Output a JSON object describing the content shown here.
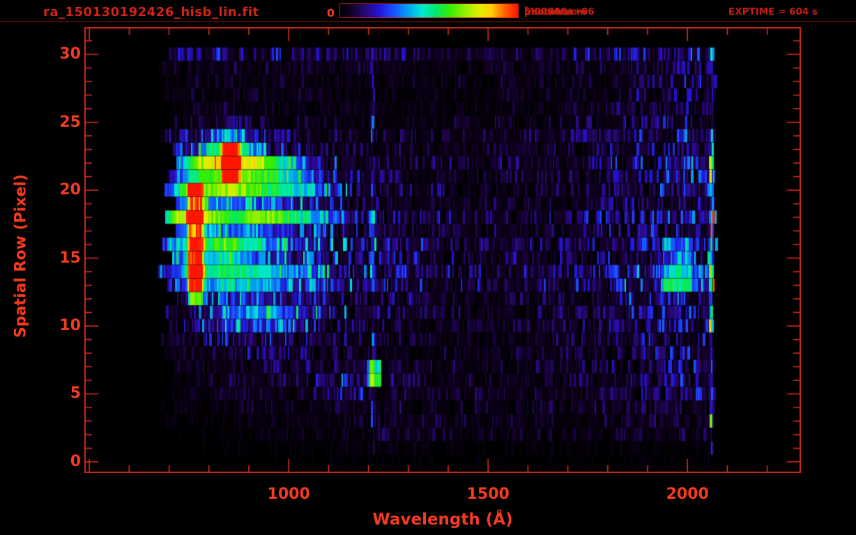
{
  "header": {
    "title": "ra_150130192426_hisb_lin.fit",
    "colorbar_min_label": "0",
    "colorbar_max_label": "5.00000e+06",
    "colorbar_units_prefix": " photons/cm",
    "colorbar_units_sup": "2",
    "colorbar_units_suffix": "/sec/A/sr",
    "exptime_label": "EXPTIME = 604 s"
  },
  "colors": {
    "background": "#000000",
    "title_text": "#d0241a",
    "header_text": "#c41f12",
    "tick_text": "#f53b20",
    "frame": "#c8271a",
    "tick": "#e8301d"
  },
  "chart_data": {
    "type": "heatmap",
    "title": "ra_150130192426_hisb_lin.fit",
    "xlabel": "Wavelength (Å)",
    "ylabel": "Spatial Row (Pixel)",
    "x_ticks": [
      1000,
      1500,
      2000
    ],
    "x_minor_step": 100,
    "x_major_step": 500,
    "x_range": [
      491,
      2281
    ],
    "y_ticks": [
      0,
      5,
      10,
      15,
      20,
      25,
      30
    ],
    "y_minor_step": 1,
    "y_major_step": 5,
    "y_range": [
      -0.72,
      31.9
    ],
    "exposure_s": 604,
    "colorbar": {
      "min": 0,
      "max": 5000000,
      "units": "photons/cm^2/sec/A/sr",
      "stops": [
        [
          0.0,
          "#000000"
        ],
        [
          0.07,
          "#14002a"
        ],
        [
          0.15,
          "#2a0880"
        ],
        [
          0.22,
          "#2214d8"
        ],
        [
          0.3,
          "#1850ff"
        ],
        [
          0.38,
          "#00a0f0"
        ],
        [
          0.46,
          "#00e8d0"
        ],
        [
          0.54,
          "#00e868"
        ],
        [
          0.62,
          "#38ee00"
        ],
        [
          0.7,
          "#90f000"
        ],
        [
          0.78,
          "#e0f000"
        ],
        [
          0.85,
          "#ffd000"
        ],
        [
          0.92,
          "#ff6800"
        ],
        [
          1.0,
          "#ff1400"
        ]
      ]
    },
    "intensity_scale_max": 10,
    "data_lambda_extent": [
      665,
      2072
    ],
    "wavelength_samples": [
      650,
      750,
      850,
      950,
      1050,
      1150,
      1250,
      1350,
      1450,
      1550,
      1650,
      1750,
      1850,
      1950,
      2050
    ],
    "row_order": "bottom-to-top (index = spatial row 0..30)",
    "grid": [
      [
        0.05,
        0.1,
        0.1,
        0.15,
        0.2,
        0.3,
        0.25,
        0.2,
        0.2,
        0.15,
        0.15,
        0.2,
        0.2,
        0.3,
        0.3
      ],
      [
        0.1,
        0.15,
        0.2,
        0.25,
        0.3,
        0.4,
        0.4,
        0.4,
        0.35,
        0.3,
        0.3,
        0.3,
        0.4,
        0.5,
        0.6
      ],
      [
        0.15,
        0.2,
        0.3,
        0.4,
        0.5,
        0.6,
        0.8,
        0.9,
        0.8,
        0.7,
        0.6,
        0.6,
        0.7,
        0.8,
        1.0
      ],
      [
        0.2,
        0.3,
        0.4,
        0.5,
        0.6,
        0.8,
        0.9,
        1.0,
        0.9,
        0.8,
        0.7,
        0.8,
        0.9,
        1.1,
        1.3
      ],
      [
        0.3,
        0.5,
        0.6,
        0.7,
        0.8,
        1.0,
        0.9,
        0.8,
        0.7,
        0.7,
        0.8,
        0.9,
        1.1,
        1.4,
        1.7
      ],
      [
        0.4,
        0.6,
        0.8,
        0.9,
        1.0,
        1.8,
        1.1,
        0.9,
        0.8,
        0.8,
        0.9,
        1.1,
        1.4,
        1.8,
        2.1
      ],
      [
        0.5,
        0.8,
        1.1,
        1.2,
        1.3,
        3.0,
        1.5,
        1.1,
        0.9,
        0.9,
        1.0,
        1.3,
        1.7,
        2.1,
        2.4
      ],
      [
        0.6,
        0.9,
        1.3,
        1.5,
        1.5,
        2.2,
        1.5,
        1.2,
        1.0,
        1.0,
        1.1,
        1.4,
        1.9,
        2.3,
        2.5
      ],
      [
        0.7,
        1.1,
        1.8,
        2.0,
        1.8,
        1.6,
        1.3,
        1.1,
        1.0,
        1.0,
        1.2,
        1.5,
        2.0,
        2.4,
        2.6
      ],
      [
        0.8,
        1.4,
        2.5,
        2.8,
        2.2,
        1.8,
        1.4,
        1.2,
        1.0,
        1.0,
        1.2,
        1.6,
        2.1,
        2.5,
        2.8
      ],
      [
        0.9,
        2.0,
        4.5,
        4.5,
        3.0,
        2.0,
        1.5,
        1.2,
        1.1,
        1.1,
        1.3,
        1.7,
        2.2,
        2.8,
        3.0
      ],
      [
        1.0,
        2.5,
        4.8,
        5.0,
        3.8,
        2.5,
        1.8,
        1.4,
        1.2,
        1.2,
        1.4,
        1.8,
        2.3,
        3.3,
        3.2
      ],
      [
        1.2,
        3.0,
        4.5,
        4.5,
        3.5,
        2.5,
        2.0,
        1.5,
        1.3,
        1.3,
        1.5,
        1.8,
        2.4,
        3.5,
        3.3
      ],
      [
        1.5,
        3.5,
        4.5,
        4.0,
        3.0,
        2.5,
        2.0,
        1.6,
        1.4,
        1.3,
        1.5,
        1.9,
        2.4,
        3.2,
        3.2
      ],
      [
        2.0,
        4.5,
        5.0,
        4.5,
        3.5,
        2.5,
        2.2,
        1.8,
        1.5,
        1.4,
        1.6,
        1.9,
        2.3,
        2.8,
        3.0
      ],
      [
        2.5,
        5.0,
        5.5,
        4.0,
        3.0,
        2.5,
        2.0,
        1.8,
        1.5,
        1.4,
        1.5,
        1.8,
        2.3,
        2.7,
        3.0
      ],
      [
        2.8,
        5.5,
        6.0,
        4.5,
        3.5,
        2.8,
        2.2,
        1.8,
        1.4,
        1.3,
        1.5,
        1.8,
        2.2,
        2.6,
        2.9
      ],
      [
        3.0,
        6.0,
        5.5,
        5.0,
        4.0,
        3.0,
        2.0,
        1.5,
        1.2,
        1.2,
        1.4,
        1.7,
        2.1,
        2.6,
        2.9
      ],
      [
        3.0,
        6.5,
        5.0,
        5.5,
        4.5,
        3.0,
        2.0,
        1.5,
        1.2,
        1.2,
        1.4,
        1.7,
        2.1,
        2.5,
        2.8
      ],
      [
        2.5,
        6.5,
        5.5,
        5.0,
        4.0,
        2.5,
        1.5,
        1.2,
        1.1,
        1.1,
        1.3,
        1.6,
        2.0,
        2.5,
        2.8
      ],
      [
        2.0,
        6.0,
        6.5,
        5.5,
        4.5,
        2.5,
        1.5,
        1.2,
        1.0,
        1.1,
        1.3,
        1.6,
        2.0,
        2.4,
        2.7
      ],
      [
        1.5,
        5.5,
        7.0,
        6.0,
        4.5,
        2.0,
        1.2,
        1.0,
        1.0,
        1.1,
        1.3,
        1.5,
        1.9,
        2.4,
        2.7
      ],
      [
        1.2,
        5.0,
        8.5,
        5.5,
        3.5,
        1.5,
        1.1,
        1.0,
        1.0,
        1.1,
        1.2,
        1.5,
        1.9,
        2.3,
        2.6
      ],
      [
        1.0,
        3.5,
        7.5,
        3.5,
        2.0,
        1.2,
        1.0,
        0.9,
        0.9,
        1.0,
        1.2,
        1.4,
        1.8,
        2.2,
        2.5
      ],
      [
        0.9,
        2.0,
        4.5,
        1.8,
        1.2,
        1.0,
        0.9,
        0.8,
        0.8,
        0.9,
        1.1,
        1.3,
        1.7,
        2.1,
        2.4
      ],
      [
        0.8,
        1.2,
        2.2,
        1.3,
        1.0,
        0.9,
        0.8,
        0.8,
        0.8,
        0.9,
        1.0,
        1.3,
        1.6,
        2.0,
        2.3
      ],
      [
        0.7,
        0.9,
        1.1,
        0.9,
        0.8,
        0.7,
        0.7,
        0.7,
        0.7,
        0.8,
        1.0,
        1.2,
        1.5,
        1.9,
        2.2
      ],
      [
        0.7,
        0.8,
        1.0,
        0.9,
        0.8,
        0.7,
        0.7,
        0.6,
        0.7,
        0.8,
        0.9,
        1.1,
        1.4,
        1.8,
        2.1
      ],
      [
        0.7,
        0.9,
        1.0,
        0.9,
        0.8,
        0.7,
        0.7,
        0.7,
        0.7,
        0.8,
        0.9,
        1.1,
        1.4,
        1.9,
        2.2
      ],
      [
        0.8,
        1.0,
        1.2,
        1.0,
        0.8,
        0.8,
        0.8,
        0.7,
        0.7,
        0.8,
        0.9,
        1.2,
        1.5,
        2.0,
        2.2
      ],
      [
        1.2,
        1.5,
        1.8,
        1.5,
        1.2,
        1.2,
        1.2,
        1.0,
        1.0,
        1.0,
        1.2,
        1.5,
        1.8,
        2.2,
        2.5
      ]
    ],
    "features": [
      {
        "name": "bright-emission-arc",
        "lambda": [
          742,
          792
        ],
        "rows": [
          11.5,
          20.5
        ],
        "boost": 4.5
      },
      {
        "name": "hotspot-core",
        "lambda": [
          828,
          882
        ],
        "rows": [
          20.5,
          23.6
        ],
        "boost": 5.0
      },
      {
        "name": "lyman-alpha-stripe",
        "lambda": [
          1200,
          1222
        ],
        "rows": [
          0,
          30.5
        ],
        "boost": 1.6
      },
      {
        "name": "lyman-alpha-blob",
        "lambda": [
          1192,
          1240
        ],
        "rows": [
          5.2,
          7.6
        ],
        "boost": 4.2
      },
      {
        "name": "bright-right-edge",
        "lambda": [
          2050,
          2070
        ],
        "rows": [
          0.5,
          30.5
        ],
        "boost": 2.4
      },
      {
        "name": "green-patch-right",
        "lambda": [
          1930,
          2020
        ],
        "rows": [
          12.5,
          16.6
        ],
        "boost": 1.6
      }
    ],
    "noise": {
      "seed": 11,
      "dropout_p": 0.13,
      "column_floor": 0.15,
      "column_scale": 1.55,
      "smooth_start": 3.0,
      "smooth_range": 3.5
    }
  }
}
